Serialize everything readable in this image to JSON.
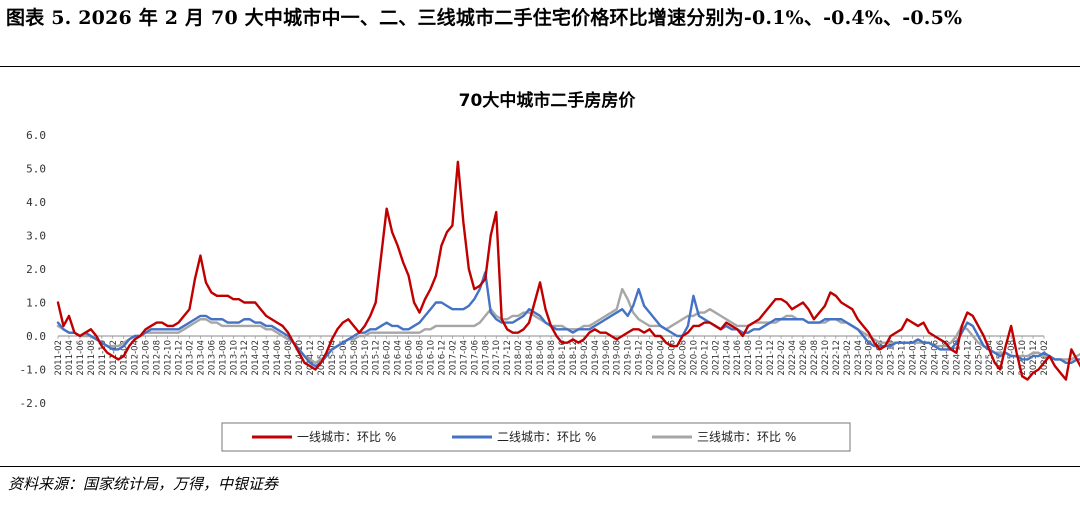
{
  "figure": {
    "title": "图表 5. 2026 年 2 月 70 大中城市中一、二、三线城市二手住宅价格环比增速分别为-0.1%、-0.4%、-0.5%",
    "source": "资料来源：国家统计局，万得，中银证券"
  },
  "chart_data": {
    "type": "line",
    "title": "70大中城市二手房房价",
    "xlabel": "",
    "ylabel": "",
    "ylim": [
      -2.0,
      6.0
    ],
    "yticks": [
      "6.0",
      "5.0",
      "4.0",
      "3.0",
      "2.0",
      "1.0",
      "0.0",
      "-1.0",
      "-2.0"
    ],
    "grid": false,
    "legend_position": "bottom",
    "x_start": "2011-02",
    "x_end": "2026-02",
    "x_tick_step_months": 2,
    "series": [
      {
        "name": "一线城市：环比 %",
        "color": "#C00000",
        "values": [
          1.0,
          0.3,
          0.6,
          0.1,
          0.0,
          0.1,
          0.2,
          0.0,
          -0.3,
          -0.5,
          -0.6,
          -0.7,
          -0.6,
          -0.3,
          -0.1,
          0.0,
          0.2,
          0.3,
          0.4,
          0.4,
          0.3,
          0.3,
          0.4,
          0.6,
          0.8,
          1.7,
          2.4,
          1.6,
          1.3,
          1.2,
          1.2,
          1.2,
          1.1,
          1.1,
          1.0,
          1.0,
          1.0,
          0.8,
          0.6,
          0.5,
          0.4,
          0.3,
          0.1,
          -0.2,
          -0.5,
          -0.8,
          -0.9,
          -1.0,
          -0.8,
          -0.5,
          -0.1,
          0.2,
          0.4,
          0.5,
          0.3,
          0.1,
          0.3,
          0.6,
          1.0,
          2.4,
          3.8,
          3.1,
          2.7,
          2.2,
          1.8,
          1.0,
          0.7,
          1.1,
          1.4,
          1.8,
          2.7,
          3.1,
          3.3,
          5.2,
          3.4,
          2.0,
          1.4,
          1.5,
          1.7,
          3.0,
          3.7,
          0.5,
          0.2,
          0.1,
          0.1,
          0.2,
          0.4,
          1.0,
          1.6,
          0.8,
          0.3,
          0.0,
          -0.2,
          -0.2,
          -0.1,
          -0.2,
          -0.1,
          0.1,
          0.2,
          0.1,
          0.1,
          0.0,
          -0.1,
          0.0,
          0.1,
          0.2,
          0.2,
          0.1,
          0.2,
          0.0,
          0.0,
          -0.2,
          -0.3,
          -0.3,
          0.0,
          0.1,
          0.3,
          0.3,
          0.4,
          0.4,
          0.3,
          0.2,
          0.4,
          0.3,
          0.2,
          0.0,
          0.3,
          0.4,
          0.5,
          0.7,
          0.9,
          1.1,
          1.1,
          1.0,
          0.8,
          0.9,
          1.0,
          0.8,
          0.5,
          0.7,
          0.9,
          1.3,
          1.2,
          1.0,
          0.9,
          0.8,
          0.5,
          0.3,
          0.1,
          -0.2,
          -0.4,
          -0.3,
          0.0,
          0.1,
          0.2,
          0.5,
          0.4,
          0.3,
          0.4,
          0.1,
          0.0,
          -0.1,
          -0.2,
          -0.4,
          -0.5,
          0.3,
          0.7,
          0.6,
          0.3,
          0.0,
          -0.4,
          -0.8,
          -1.0,
          -0.3,
          0.3,
          -0.5,
          -1.2,
          -1.3,
          -1.1,
          -1.0,
          -0.8,
          -0.6,
          -0.9,
          -1.1,
          -1.3,
          -0.4,
          -0.7,
          -1.0,
          -1.2,
          0.1,
          0.5,
          0.4,
          0.3,
          0.2,
          0.3,
          0.2,
          -0.3,
          -0.1,
          0.1,
          -0.1,
          -0.4,
          -0.6,
          -0.8,
          -0.9,
          -1.0,
          -0.9,
          -1.1,
          -0.8,
          -0.1
        ]
      },
      {
        "name": "二线城市：环比 %",
        "color": "#4472C4",
        "values": [
          0.4,
          0.2,
          0.1,
          0.1,
          0.0,
          0.1,
          0.0,
          -0.1,
          -0.2,
          -0.3,
          -0.4,
          -0.4,
          -0.3,
          -0.1,
          0.0,
          0.0,
          0.1,
          0.2,
          0.2,
          0.2,
          0.2,
          0.2,
          0.2,
          0.3,
          0.4,
          0.5,
          0.6,
          0.6,
          0.5,
          0.5,
          0.5,
          0.4,
          0.4,
          0.4,
          0.5,
          0.5,
          0.4,
          0.4,
          0.3,
          0.3,
          0.2,
          0.1,
          0.0,
          -0.2,
          -0.4,
          -0.6,
          -0.8,
          -0.9,
          -0.8,
          -0.6,
          -0.4,
          -0.3,
          -0.2,
          -0.1,
          0.0,
          0.1,
          0.1,
          0.2,
          0.2,
          0.3,
          0.4,
          0.3,
          0.3,
          0.2,
          0.2,
          0.3,
          0.4,
          0.6,
          0.8,
          1.0,
          1.0,
          0.9,
          0.8,
          0.8,
          0.8,
          0.9,
          1.1,
          1.4,
          1.9,
          0.7,
          0.5,
          0.4,
          0.4,
          0.4,
          0.5,
          0.6,
          0.8,
          0.7,
          0.6,
          0.4,
          0.3,
          0.2,
          0.2,
          0.2,
          0.1,
          0.2,
          0.2,
          0.2,
          0.3,
          0.4,
          0.5,
          0.6,
          0.7,
          0.8,
          0.6,
          0.9,
          1.4,
          0.9,
          0.7,
          0.5,
          0.3,
          0.2,
          0.1,
          0.0,
          0.0,
          0.3,
          1.2,
          0.6,
          0.5,
          0.4,
          0.3,
          0.2,
          0.3,
          0.2,
          0.2,
          0.1,
          0.1,
          0.2,
          0.2,
          0.3,
          0.4,
          0.5,
          0.5,
          0.5,
          0.5,
          0.5,
          0.5,
          0.4,
          0.4,
          0.4,
          0.5,
          0.5,
          0.5,
          0.5,
          0.4,
          0.3,
          0.2,
          0.0,
          -0.2,
          -0.3,
          -0.3,
          -0.3,
          -0.3,
          -0.2,
          -0.2,
          -0.2,
          -0.2,
          -0.1,
          -0.2,
          -0.2,
          -0.3,
          -0.4,
          -0.4,
          -0.4,
          -0.2,
          0.1,
          0.4,
          0.3,
          0.0,
          -0.3,
          -0.4,
          -0.5,
          -0.6,
          -0.5,
          -0.6,
          -0.6,
          -0.7,
          -0.7,
          -0.6,
          -0.6,
          -0.5,
          -0.6,
          -0.7,
          -0.7,
          -0.8,
          -0.8,
          -0.7,
          -0.7,
          -0.6,
          -0.4,
          -0.3,
          -0.2,
          -0.2,
          -0.3,
          -0.3,
          -0.3,
          -0.3,
          -0.4,
          -0.4,
          -0.5,
          -0.6,
          -0.6,
          -0.6,
          -0.7,
          -0.6,
          -0.6,
          -0.5,
          -0.4
        ]
      },
      {
        "name": "三线城市：环比 %",
        "color": "#A6A6A6",
        "values": [
          0.3,
          0.2,
          0.1,
          0.1,
          0.0,
          0.0,
          0.0,
          -0.1,
          -0.2,
          -0.3,
          -0.3,
          -0.3,
          -0.2,
          -0.1,
          0.0,
          0.0,
          0.1,
          0.1,
          0.1,
          0.1,
          0.1,
          0.1,
          0.1,
          0.2,
          0.3,
          0.4,
          0.5,
          0.5,
          0.4,
          0.4,
          0.3,
          0.3,
          0.3,
          0.3,
          0.3,
          0.3,
          0.3,
          0.3,
          0.2,
          0.2,
          0.1,
          0.0,
          -0.1,
          -0.2,
          -0.4,
          -0.6,
          -0.7,
          -0.8,
          -0.7,
          -0.6,
          -0.4,
          -0.3,
          -0.2,
          -0.1,
          -0.1,
          0.0,
          0.0,
          0.1,
          0.1,
          0.1,
          0.1,
          0.1,
          0.1,
          0.1,
          0.1,
          0.1,
          0.1,
          0.2,
          0.2,
          0.3,
          0.3,
          0.3,
          0.3,
          0.3,
          0.3,
          0.3,
          0.3,
          0.4,
          0.6,
          0.8,
          0.6,
          0.5,
          0.5,
          0.6,
          0.6,
          0.7,
          0.7,
          0.6,
          0.5,
          0.4,
          0.3,
          0.3,
          0.3,
          0.2,
          0.2,
          0.2,
          0.3,
          0.3,
          0.4,
          0.5,
          0.6,
          0.7,
          0.8,
          1.4,
          1.1,
          0.7,
          0.5,
          0.4,
          0.3,
          0.3,
          0.3,
          0.2,
          0.3,
          0.4,
          0.5,
          0.6,
          0.6,
          0.7,
          0.7,
          0.8,
          0.7,
          0.6,
          0.5,
          0.4,
          0.3,
          0.3,
          0.3,
          0.4,
          0.4,
          0.4,
          0.4,
          0.4,
          0.5,
          0.6,
          0.6,
          0.5,
          0.5,
          0.4,
          0.4,
          0.4,
          0.4,
          0.5,
          0.5,
          0.4,
          0.4,
          0.3,
          0.2,
          0.1,
          0.0,
          -0.1,
          -0.2,
          -0.2,
          -0.2,
          -0.2,
          -0.2,
          -0.2,
          -0.2,
          -0.2,
          -0.2,
          -0.2,
          -0.3,
          -0.3,
          -0.3,
          -0.2,
          0.0,
          0.3,
          0.2,
          0.0,
          -0.2,
          -0.3,
          -0.4,
          -0.5,
          -0.5,
          -0.5,
          -0.6,
          -0.6,
          -0.6,
          -0.6,
          -0.5,
          -0.5,
          -0.6,
          -0.6,
          -0.7,
          -0.7,
          -0.7,
          -0.7,
          -0.6,
          -0.5,
          -0.4,
          -0.3,
          -0.3,
          -0.3,
          -0.3,
          -0.3,
          -0.4,
          -0.4,
          -0.4,
          -0.5,
          -0.5,
          -0.6,
          -0.6,
          -0.6,
          -0.6,
          -0.7,
          -0.6,
          -0.6,
          -0.5
        ]
      }
    ]
  }
}
